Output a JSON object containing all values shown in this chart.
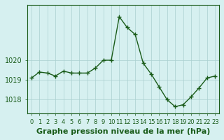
{
  "x": [
    0,
    1,
    2,
    3,
    4,
    5,
    6,
    7,
    8,
    9,
    10,
    11,
    12,
    13,
    14,
    15,
    16,
    17,
    18,
    19,
    20,
    21,
    22,
    23
  ],
  "y": [
    1019.1,
    1019.4,
    1019.35,
    1019.2,
    1019.45,
    1019.35,
    1019.35,
    1019.35,
    1019.6,
    1020.0,
    1020.0,
    1022.2,
    1021.65,
    1021.3,
    1019.85,
    1019.3,
    1018.65,
    1018.0,
    1017.65,
    1017.75,
    1018.15,
    1018.6,
    1019.1,
    1019.2
  ],
  "line_color": "#1a5c1a",
  "marker": "+",
  "marker_size": 5,
  "bg_color": "#d6f0f0",
  "grid_color": "#aacfcf",
  "axis_color": "#1a5c1a",
  "xlabel": "Graphe pression niveau de la mer (hPa)",
  "xlabel_fontsize": 8,
  "ylabel_fontsize": 7,
  "tick_fontsize": 6,
  "ylim": [
    1017.3,
    1022.8
  ],
  "yticks": [
    1018,
    1019,
    1020
  ],
  "xlim": [
    -0.5,
    23.5
  ],
  "xtick_labels": [
    "0",
    "1",
    "2",
    "3",
    "4",
    "5",
    "6",
    "7",
    "8",
    "9",
    "10",
    "11",
    "12",
    "13",
    "14",
    "15",
    "16",
    "17",
    "18",
    "19",
    "20",
    "21",
    "22",
    "23"
  ]
}
